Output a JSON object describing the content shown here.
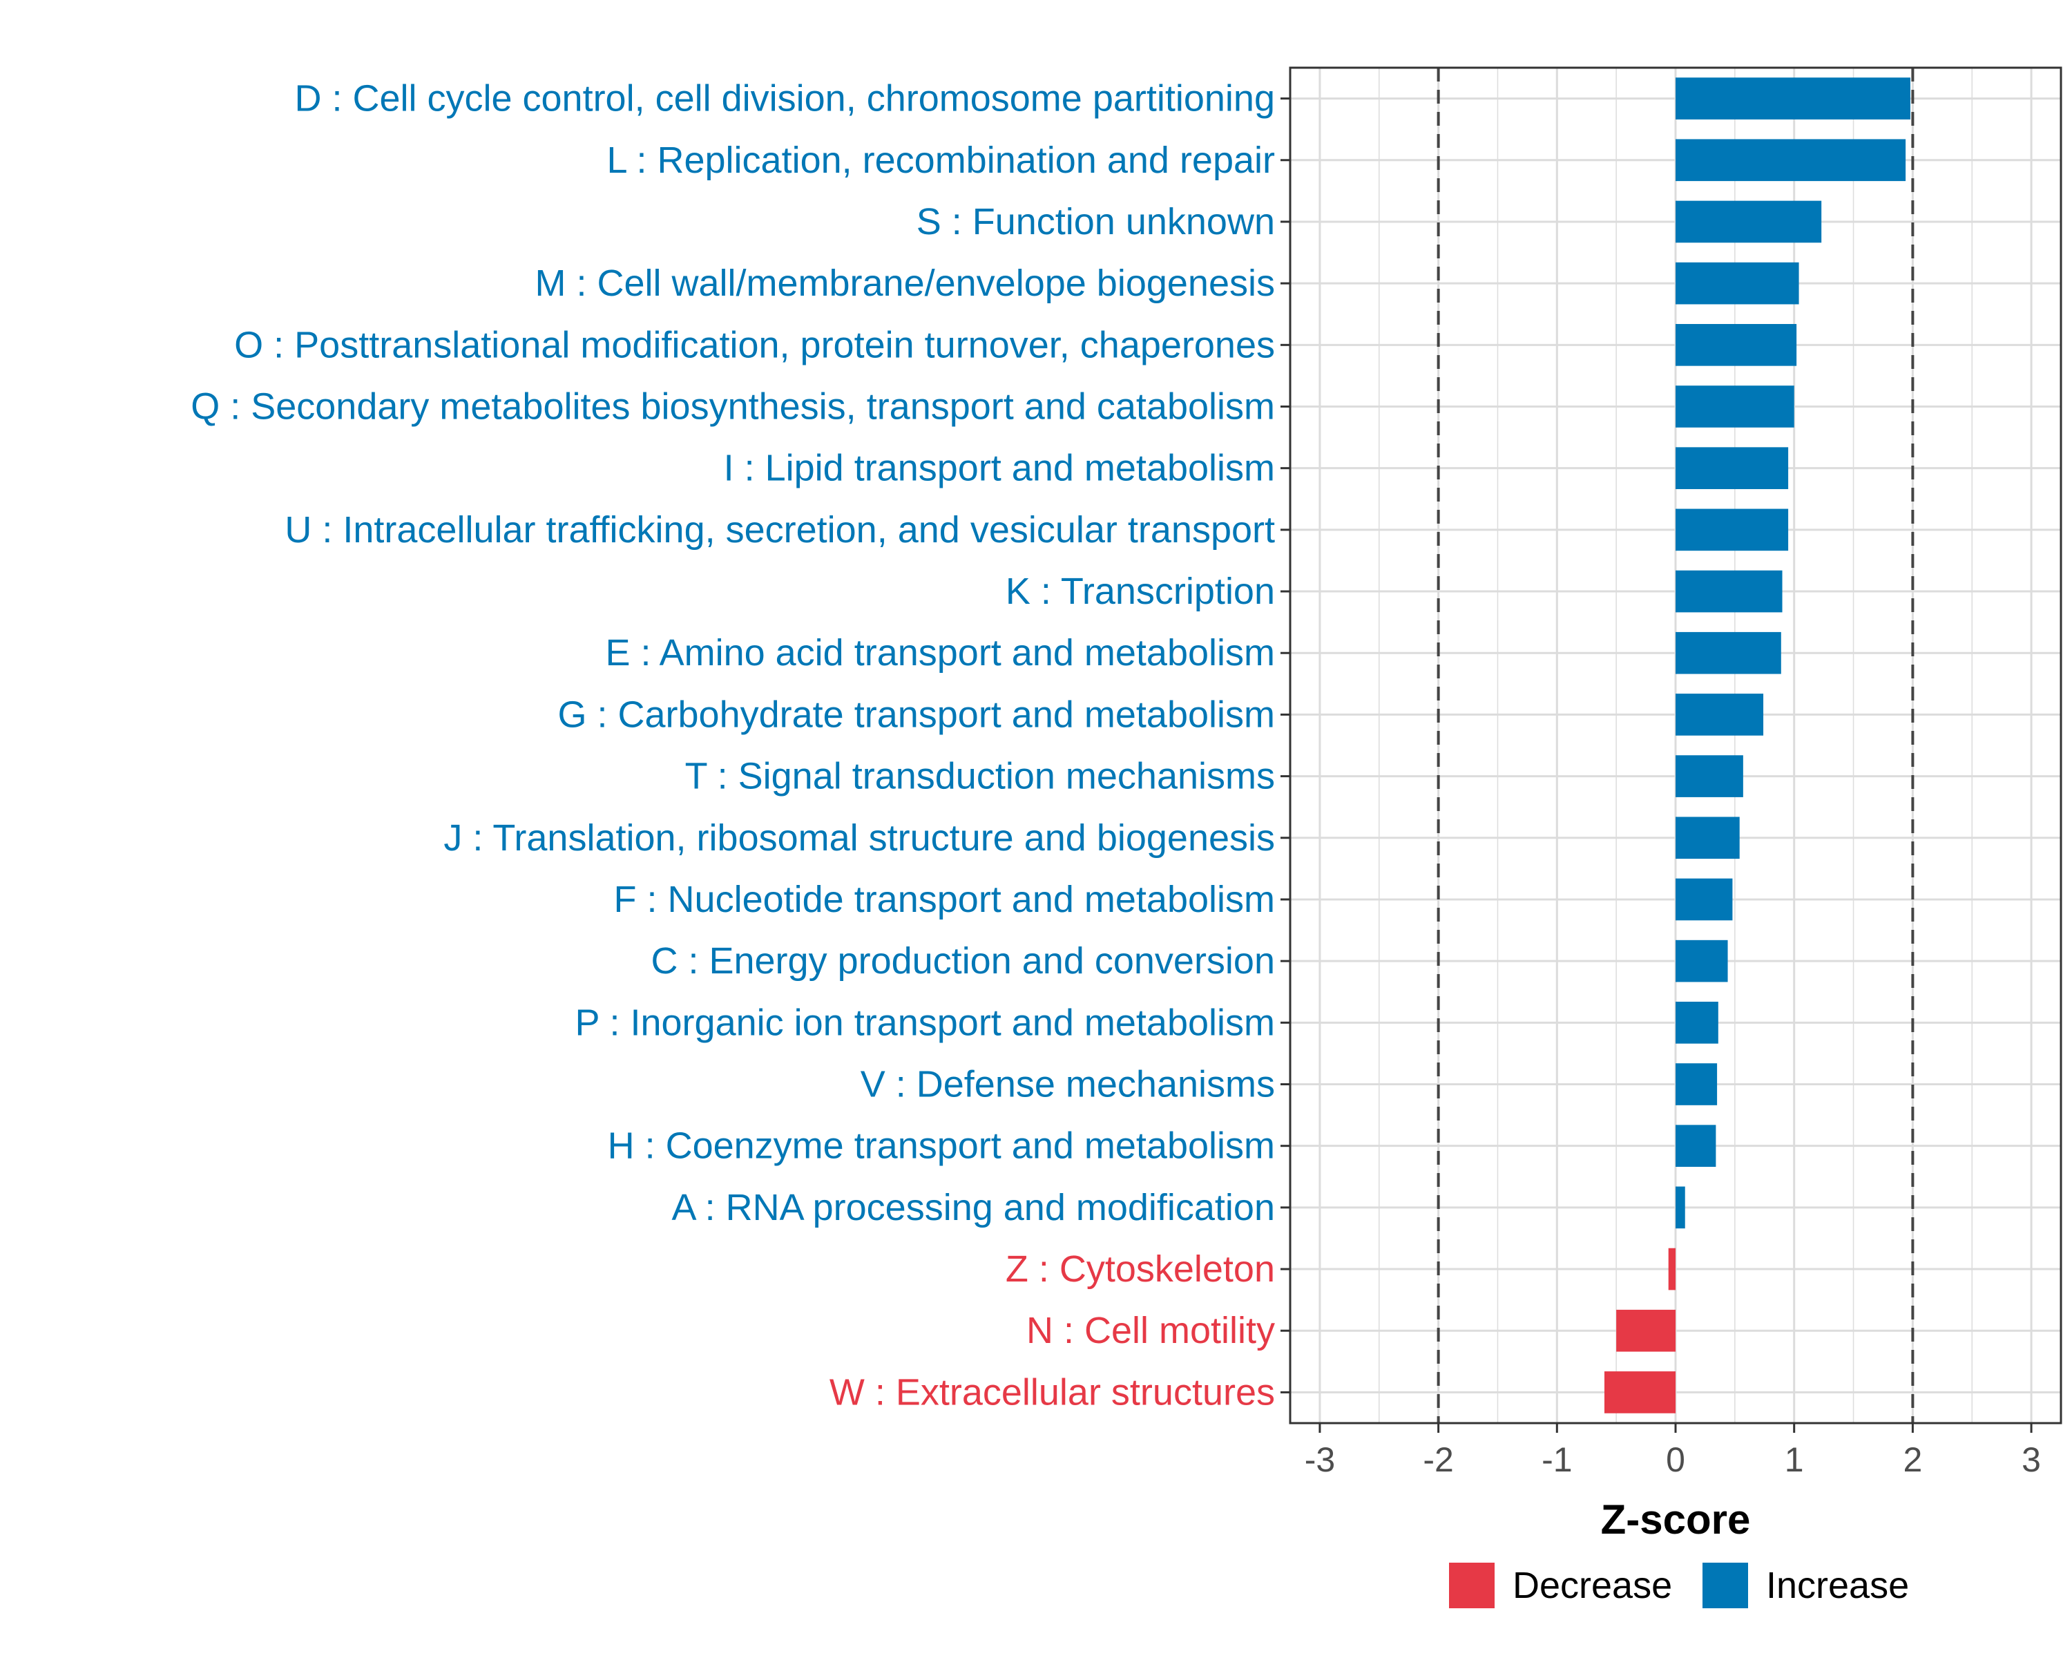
{
  "chart_data": {
    "type": "bar",
    "orientation": "horizontal",
    "title": "",
    "xlabel": "Z-score",
    "ylabel": "",
    "xlim": [
      -3.25,
      3.25
    ],
    "xticks": [
      -3,
      -2,
      -1,
      0,
      1,
      2,
      3
    ],
    "xtick_labels": [
      "-3",
      "-2",
      "-1",
      "0",
      "1",
      "2",
      "3"
    ],
    "reference_lines": [
      -2,
      2
    ],
    "grid": true,
    "legend_position": "bottom",
    "categories": [
      "D : Cell cycle control, cell division, chromosome partitioning",
      "L : Replication, recombination and repair",
      "S : Function unknown",
      "M : Cell wall/membrane/envelope biogenesis",
      "O : Posttranslational modification, protein turnover, chaperones",
      "Q : Secondary metabolites biosynthesis, transport and catabolism",
      "I : Lipid transport and metabolism",
      "U : Intracellular trafficking, secretion, and vesicular transport",
      "K : Transcription",
      "E : Amino acid transport and metabolism",
      "G : Carbohydrate transport and metabolism",
      "T : Signal transduction mechanisms",
      "J : Translation, ribosomal structure and biogenesis",
      "F : Nucleotide transport and metabolism",
      "C : Energy production and conversion",
      "P : Inorganic ion transport and metabolism",
      "V : Defense mechanisms",
      "H : Coenzyme transport and metabolism",
      "A : RNA processing and modification",
      "Z : Cytoskeleton",
      "N : Cell motility",
      "W : Extracellular structures"
    ],
    "values": [
      1.98,
      1.94,
      1.23,
      1.04,
      1.02,
      1.0,
      0.95,
      0.95,
      0.9,
      0.89,
      0.74,
      0.57,
      0.54,
      0.48,
      0.44,
      0.36,
      0.35,
      0.34,
      0.08,
      -0.06,
      -0.5,
      -0.6
    ],
    "groups": [
      "Increase",
      "Increase",
      "Increase",
      "Increase",
      "Increase",
      "Increase",
      "Increase",
      "Increase",
      "Increase",
      "Increase",
      "Increase",
      "Increase",
      "Increase",
      "Increase",
      "Increase",
      "Increase",
      "Increase",
      "Increase",
      "Increase",
      "Decrease",
      "Decrease",
      "Decrease"
    ],
    "legend": [
      {
        "label": "Decrease",
        "color": "#e63946"
      },
      {
        "label": "Increase",
        "color": "#0077b6"
      }
    ]
  }
}
